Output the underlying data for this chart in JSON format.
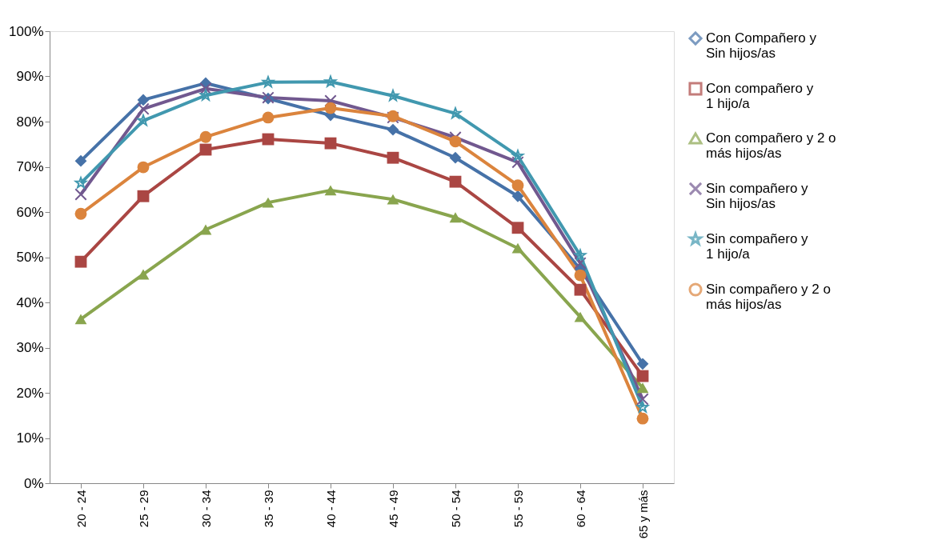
{
  "chart_data": {
    "type": "line",
    "categories": [
      "20 - 24",
      "25 - 29",
      "30 - 34",
      "35 - 39",
      "40 - 44",
      "45 - 49",
      "50 - 54",
      "55 - 59",
      "60 - 64",
      "65 y más"
    ],
    "series": [
      {
        "name": "Con Compañero y Sin hijos/as",
        "color": "#4672a8",
        "marker": "diamond",
        "values": [
          71.3,
          84.8,
          88.5,
          85.1,
          81.4,
          78.2,
          72.0,
          63.5,
          47.4,
          26.4
        ]
      },
      {
        "name": "Con compañero y 1 hijo/a",
        "color": "#aa4643",
        "marker": "square",
        "values": [
          49.0,
          63.5,
          73.8,
          76.1,
          75.2,
          72.0,
          66.7,
          56.5,
          42.8,
          23.7
        ]
      },
      {
        "name": "Con compañero y 2 o más hijos/as",
        "color": "#89a54e",
        "marker": "triangle",
        "values": [
          36.3,
          46.2,
          56.1,
          62.1,
          64.8,
          62.8,
          58.8,
          52.0,
          36.8,
          21.1
        ]
      },
      {
        "name": "Sin compañero y Sin hijos/as",
        "color": "#71588f",
        "marker": "cross",
        "values": [
          63.9,
          82.8,
          87.3,
          85.3,
          84.6,
          80.9,
          76.5,
          71.0,
          48.7,
          18.6
        ]
      },
      {
        "name": "Sin compañero y 1 hijo/a",
        "color": "#4198af",
        "marker": "star",
        "values": [
          66.4,
          80.2,
          85.8,
          88.7,
          88.8,
          85.7,
          81.8,
          72.4,
          50.4,
          16.8
        ]
      },
      {
        "name": "Sin compañero y 2 o más hijos/as",
        "color": "#db843d",
        "marker": "circle",
        "values": [
          59.6,
          69.9,
          76.6,
          80.9,
          83.0,
          81.2,
          75.6,
          65.9,
          46.0,
          14.3
        ]
      }
    ],
    "ylim": [
      0,
      100
    ],
    "yticks": [
      {
        "value": 0,
        "label": "0%"
      },
      {
        "value": 10,
        "label": "10%"
      },
      {
        "value": 20,
        "label": "20%"
      },
      {
        "value": 30,
        "label": "30%"
      },
      {
        "value": 40,
        "label": "40%"
      },
      {
        "value": 50,
        "label": "50%"
      },
      {
        "value": 60,
        "label": "60%"
      },
      {
        "value": 70,
        "label": "70%"
      },
      {
        "value": 80,
        "label": "80%"
      },
      {
        "value": 90,
        "label": "90%"
      },
      {
        "value": 100,
        "label": "100%"
      }
    ],
    "grid": false,
    "legend": "right",
    "line_style": "solid"
  }
}
